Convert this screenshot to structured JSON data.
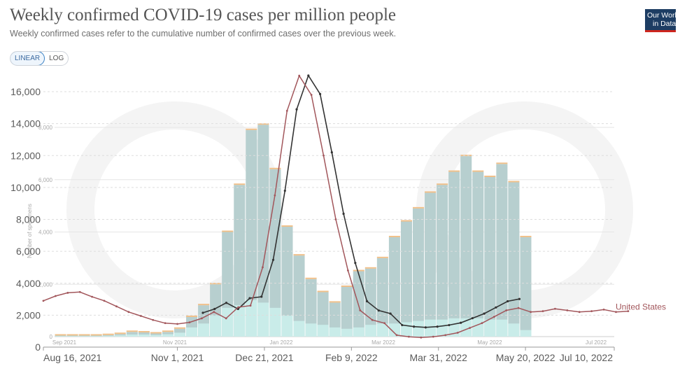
{
  "header": {
    "title": "Weekly confirmed COVID-19 cases per million people",
    "subtitle": "Weekly confirmed cases refer to the cumulative number of confirmed cases over the previous week.",
    "logo_line1": "Our World",
    "logo_line2": "in Data"
  },
  "controls": {
    "linear_label": "LINEAR",
    "log_label": "LOG",
    "selected": "linear"
  },
  "colors": {
    "line": "#a2565b",
    "overlay_line": "#333333",
    "bars_total": "#b7cfcf",
    "bars_bottom": "#c9ece9",
    "bars_top": "#f0c08a",
    "grid": "#dddddd"
  },
  "chart_data": [
    {
      "type": "line",
      "title": "Weekly confirmed COVID-19 cases per million people",
      "ylim": [
        0,
        16000
      ],
      "yticks": [
        "0",
        "2,000",
        "4,000",
        "6,000",
        "8,000",
        "10,000",
        "12,000",
        "14,000",
        "16,000"
      ],
      "xticks": [
        "Aug 16, 2021",
        "Nov 1, 2021",
        "Dec 21, 2021",
        "Feb 9, 2022",
        "Mar 31, 2022",
        "May 20, 2022",
        "Jul 10, 2022"
      ],
      "grid": "horizontal dashed",
      "series": [
        {
          "name": "United States",
          "x": [
            "2021-08-16",
            "2021-08-23",
            "2021-08-30",
            "2021-09-06",
            "2021-09-13",
            "2021-09-20",
            "2021-09-27",
            "2021-10-04",
            "2021-10-11",
            "2021-10-18",
            "2021-10-25",
            "2021-11-01",
            "2021-11-08",
            "2021-11-15",
            "2021-11-22",
            "2021-11-29",
            "2021-12-06",
            "2021-12-13",
            "2021-12-20",
            "2021-12-27",
            "2022-01-03",
            "2022-01-10",
            "2022-01-17",
            "2022-01-24",
            "2022-01-31",
            "2022-02-07",
            "2022-02-14",
            "2022-02-21",
            "2022-02-28",
            "2022-03-07",
            "2022-03-14",
            "2022-03-21",
            "2022-03-28",
            "2022-04-04",
            "2022-04-11",
            "2022-04-18",
            "2022-04-25",
            "2022-05-02",
            "2022-05-09",
            "2022-05-16",
            "2022-05-23",
            "2022-05-30",
            "2022-06-06",
            "2022-06-13",
            "2022-06-20",
            "2022-06-27",
            "2022-07-04",
            "2022-07-11",
            "2022-07-18"
          ],
          "values": [
            2900,
            3200,
            3400,
            3450,
            3150,
            2900,
            2550,
            2200,
            1950,
            1700,
            1500,
            1450,
            1550,
            1800,
            2200,
            1800,
            2500,
            2600,
            5000,
            9500,
            14800,
            17000,
            15800,
            12000,
            8000,
            4800,
            2300,
            1700,
            1500,
            750,
            650,
            600,
            650,
            750,
            900,
            1200,
            1500,
            1900,
            2300,
            2450,
            2200,
            2250,
            2400,
            2300,
            2200,
            2250,
            2350,
            2200,
            2250
          ]
        }
      ]
    },
    {
      "type": "bar",
      "description_ylabel": "Number of specimens",
      "ylim": [
        0,
        8000
      ],
      "yticks": [
        "0",
        "2,000",
        "4,000",
        "6,000",
        "8,000"
      ],
      "xticks": [
        "Sep 2021",
        "Nov 2021",
        "Jan 2022",
        "Mar 2022",
        "May 2022",
        "Jul 2022"
      ],
      "series": [
        {
          "name": "total",
          "values": [
            40,
            40,
            40,
            40,
            60,
            100,
            180,
            160,
            120,
            180,
            300,
            750,
            1200,
            2000,
            4000,
            5800,
            7900,
            8100,
            6400,
            4200,
            3100,
            2200,
            1700,
            1300,
            1900,
            2500,
            2600,
            3000,
            3800,
            4400,
            4900,
            5500,
            5800,
            6300,
            6900,
            6300,
            6100,
            6600,
            5900,
            3800
          ]
        },
        {
          "name": "lower",
          "values": [
            20,
            20,
            20,
            20,
            30,
            50,
            80,
            80,
            60,
            90,
            150,
            350,
            500,
            800,
            1100,
            1200,
            1400,
            1300,
            1100,
            800,
            600,
            500,
            450,
            350,
            300,
            350,
            450,
            500,
            500,
            550,
            600,
            650,
            650,
            700,
            700,
            700,
            650,
            650,
            500,
            250
          ]
        }
      ]
    }
  ]
}
